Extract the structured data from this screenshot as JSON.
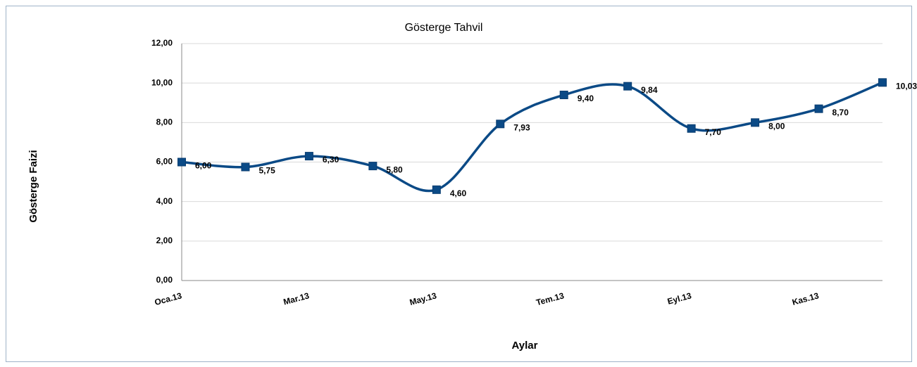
{
  "chart_data": {
    "type": "line",
    "title": "Gösterge Tahvil",
    "x_label": "Aylar",
    "y_label": "Gösterge Faizi",
    "categories": [
      "Oca.13",
      null,
      "Mar.13",
      null,
      "May.13",
      null,
      "Tem.13",
      null,
      "Eyl.13",
      null,
      "Kas.13",
      null
    ],
    "series": [
      {
        "name": "Gösterge Tahvil",
        "color": "#0b4a86",
        "values": [
          6.0,
          5.75,
          6.3,
          5.8,
          4.6,
          7.93,
          9.4,
          9.84,
          7.7,
          8.0,
          8.7,
          10.03
        ],
        "value_labels": [
          "6,00",
          "5,75",
          "6,30",
          "5,80",
          "4,60",
          "7,93",
          "9,40",
          "9,84",
          "7,70",
          "8,00",
          "8,70",
          "10,03"
        ]
      }
    ],
    "ylim": [
      0,
      12
    ],
    "yticks": [
      {
        "value": 0,
        "label": "0,00"
      },
      {
        "value": 2,
        "label": "2,00"
      },
      {
        "value": 4,
        "label": "4,00"
      },
      {
        "value": 6,
        "label": "6,00"
      },
      {
        "value": 8,
        "label": "8,00"
      },
      {
        "value": 10,
        "label": "10,00"
      },
      {
        "value": 12,
        "label": "12,00"
      }
    ],
    "grid": true,
    "smooth": true
  }
}
